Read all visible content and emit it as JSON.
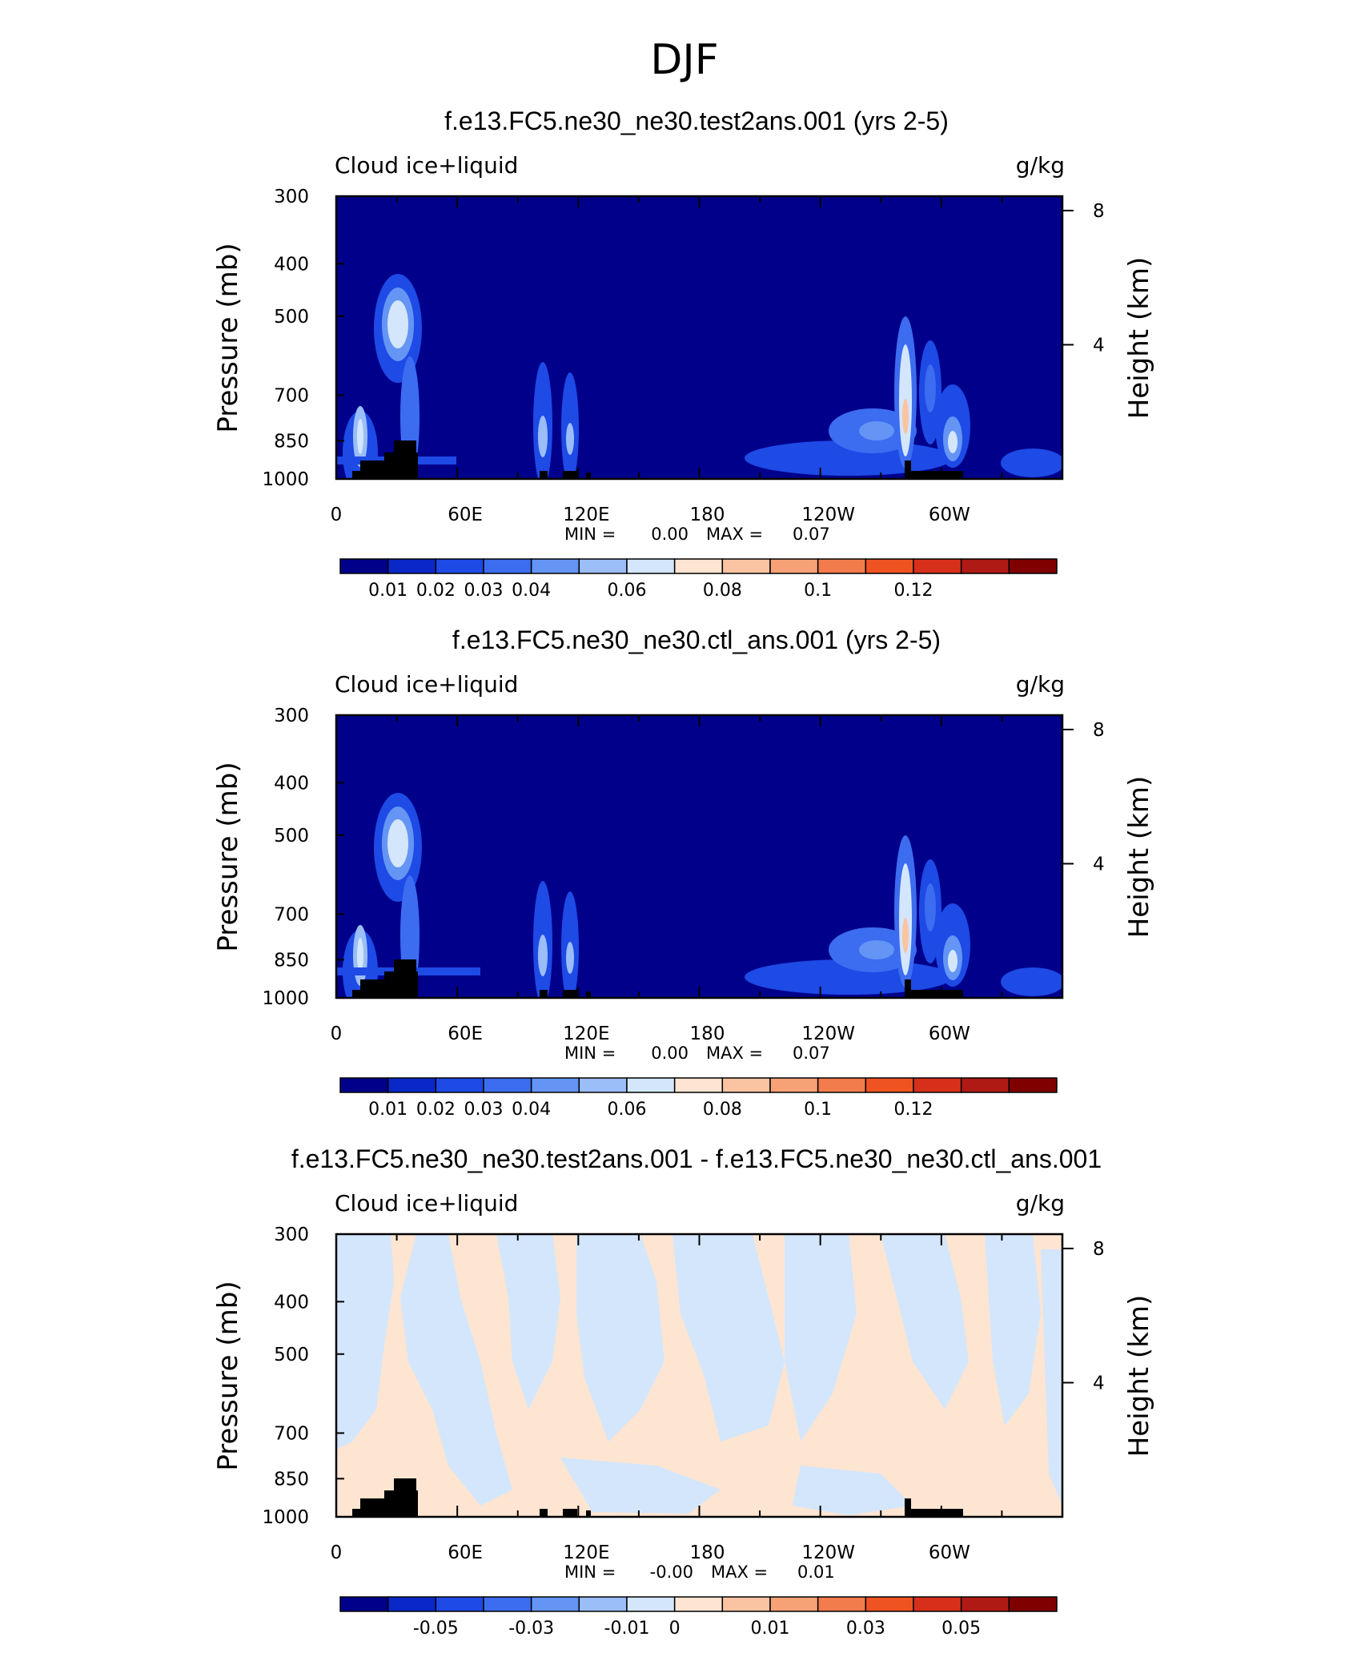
{
  "figure": {
    "title": "DJF"
  },
  "colorbar_colors": [
    "#00008a",
    "#0a28c8",
    "#1e4ae6",
    "#3c6cf0",
    "#6495f5",
    "#9bbdf8",
    "#d3e6fc",
    "#fde5d2",
    "#fac4a2",
    "#f6a276",
    "#f37c4c",
    "#ef5322",
    "#d7301a",
    "#b01a14",
    "#800000"
  ],
  "pressure_ticks": [
    "300",
    "400",
    "500",
    "700",
    "850",
    "1000"
  ],
  "height_ticks": [
    "8",
    "4"
  ],
  "lon_ticks": [
    "0",
    "60E",
    "120E",
    "180",
    "120W",
    "60W"
  ],
  "chart_data": [
    {
      "type": "heatmap",
      "title": "f.e13.FC5.ne30_ne30.test2ans.001 (yrs 2-5)",
      "left_string": "Cloud ice+liquid",
      "right_string": "g/kg",
      "ylabel": "Pressure (mb)",
      "ylabel_right": "Height (km)",
      "xlim": [
        0,
        360
      ],
      "ylim": [
        1000,
        300
      ],
      "yscale": "log",
      "min_label": "MIN =",
      "min_value": "0.00",
      "max_label": "MAX =",
      "max_value": "0.07",
      "colorbar_labels": [
        "0.01",
        "0.02",
        "0.03",
        "0.04",
        "0.06",
        "0.08",
        "0.1",
        "0.12"
      ],
      "colorbar_levels": [
        0.005,
        0.01,
        0.015,
        0.02,
        0.025,
        0.03,
        0.035,
        0.04,
        0.05,
        0.06,
        0.07,
        0.08,
        0.1,
        0.12
      ],
      "features": [
        {
          "lon": 12,
          "p": 880,
          "value": 0.05
        },
        {
          "lon": 30,
          "p": 620,
          "value": 0.045
        },
        {
          "lon": 35,
          "p": 850,
          "value": 0.03
        },
        {
          "lon": 102,
          "p": 890,
          "value": 0.03
        },
        {
          "lon": 116,
          "p": 890,
          "value": 0.025
        },
        {
          "lon": 265,
          "p": 870,
          "value": 0.035
        },
        {
          "lon": 283,
          "p": 800,
          "value": 0.07
        },
        {
          "lon": 295,
          "p": 820,
          "value": 0.03
        },
        {
          "lon": 306,
          "p": 900,
          "value": 0.04
        },
        {
          "lon": 240,
          "p": 940,
          "value": 0.015
        }
      ],
      "surface_pressure": 1000
    },
    {
      "type": "heatmap",
      "title": "f.e13.FC5.ne30_ne30.ctl_ans.001 (yrs 2-5)",
      "left_string": "Cloud ice+liquid",
      "right_string": "g/kg",
      "ylabel": "Pressure (mb)",
      "ylabel_right": "Height (km)",
      "xlim": [
        0,
        360
      ],
      "ylim": [
        1000,
        300
      ],
      "yscale": "log",
      "min_label": "MIN =",
      "min_value": "0.00",
      "max_label": "MAX =",
      "max_value": "0.07",
      "colorbar_labels": [
        "0.01",
        "0.02",
        "0.03",
        "0.04",
        "0.06",
        "0.08",
        "0.1",
        "0.12"
      ],
      "colorbar_levels": [
        0.005,
        0.01,
        0.015,
        0.02,
        0.025,
        0.03,
        0.035,
        0.04,
        0.05,
        0.06,
        0.07,
        0.08,
        0.1,
        0.12
      ],
      "features": [
        {
          "lon": 12,
          "p": 880,
          "value": 0.05
        },
        {
          "lon": 30,
          "p": 620,
          "value": 0.045
        },
        {
          "lon": 35,
          "p": 850,
          "value": 0.03
        },
        {
          "lon": 102,
          "p": 890,
          "value": 0.03
        },
        {
          "lon": 116,
          "p": 890,
          "value": 0.025
        },
        {
          "lon": 265,
          "p": 870,
          "value": 0.035
        },
        {
          "lon": 283,
          "p": 800,
          "value": 0.07
        },
        {
          "lon": 295,
          "p": 820,
          "value": 0.03
        },
        {
          "lon": 306,
          "p": 900,
          "value": 0.04
        },
        {
          "lon": 240,
          "p": 940,
          "value": 0.015
        }
      ],
      "surface_pressure": 1000
    },
    {
      "type": "heatmap",
      "title": "f.e13.FC5.ne30_ne30.test2ans.001 - f.e13.FC5.ne30_ne30.ctl_ans.001",
      "left_string": "Cloud ice+liquid",
      "right_string": "g/kg",
      "ylabel": "Pressure (mb)",
      "ylabel_right": "Height (km)",
      "xlim": [
        0,
        360
      ],
      "ylim": [
        1000,
        300
      ],
      "yscale": "log",
      "min_label": "MIN =",
      "min_value": "-0.00",
      "max_label": "MAX =",
      "max_value": "0.01",
      "colorbar_labels": [
        "-0.05",
        "-0.03",
        "-0.01",
        "0",
        "0.01",
        "0.03",
        "0.05"
      ],
      "colorbar_levels": [
        -0.06,
        -0.05,
        -0.04,
        -0.03,
        -0.02,
        -0.01,
        0,
        0.005,
        0.01,
        0.02,
        0.03,
        0.04,
        0.05,
        0.06
      ],
      "features": [
        {
          "lon": 20,
          "p": 450,
          "value": -0.004
        },
        {
          "lon": 60,
          "p": 700,
          "value": 0.004
        },
        {
          "lon": 110,
          "p": 500,
          "value": -0.004
        },
        {
          "lon": 150,
          "p": 800,
          "value": 0.004
        },
        {
          "lon": 200,
          "p": 450,
          "value": -0.004
        },
        {
          "lon": 250,
          "p": 650,
          "value": 0.004
        },
        {
          "lon": 300,
          "p": 500,
          "value": -0.004
        },
        {
          "lon": 340,
          "p": 750,
          "value": 0.004
        }
      ],
      "surface_pressure": 1000
    }
  ]
}
